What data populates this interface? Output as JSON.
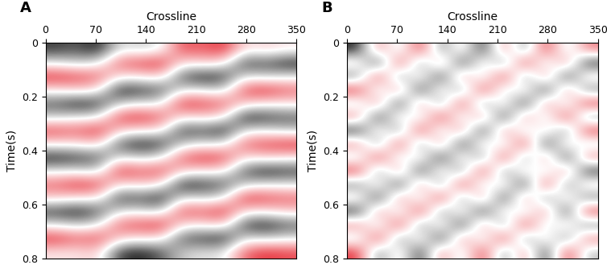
{
  "chart_data": [
    {
      "type": "heatmap",
      "title": "A",
      "xlabel": "Crossline",
      "ylabel": "Time(s)",
      "xlim": [
        0,
        350
      ],
      "ylim": [
        0.8,
        0
      ],
      "xticks": [
        0,
        70,
        140,
        210,
        280,
        350
      ],
      "yticks": [
        0,
        0.2,
        0.4,
        0.6,
        0.8
      ],
      "cells": [
        [
          0.7,
          0.6,
          0.8,
          0.1,
          0.2,
          0.1,
          -0.7,
          -0.6,
          -0.8,
          -0.1,
          -0.2,
          -0.1
        ],
        [
          0.1,
          0.2,
          0.1,
          -0.6,
          -0.7,
          -0.8,
          -0.1,
          -0.2,
          -0.1,
          0.7,
          0.6,
          0.8
        ],
        [
          -0.8,
          -0.7,
          -0.6,
          -0.1,
          -0.1,
          -0.2,
          0.6,
          0.8,
          0.7,
          0.1,
          0.2,
          0.1
        ],
        [
          -0.1,
          -0.2,
          -0.1,
          0.8,
          0.7,
          0.6,
          0.1,
          0.1,
          0.2,
          -0.7,
          -0.8,
          -0.6
        ],
        [
          0.6,
          0.8,
          0.7,
          0.2,
          0.1,
          0.1,
          -0.8,
          -0.7,
          -0.6,
          -0.2,
          -0.1,
          -0.1
        ],
        [
          0.2,
          0.1,
          0.1,
          -0.7,
          -0.8,
          -0.6,
          -0.1,
          -0.2,
          -0.1,
          0.8,
          0.7,
          0.6
        ],
        [
          -0.7,
          -0.6,
          -0.8,
          -0.2,
          -0.1,
          -0.1,
          0.7,
          0.6,
          0.8,
          0.1,
          0.1,
          0.2
        ],
        [
          -0.1,
          -0.1,
          -0.2,
          0.6,
          0.8,
          0.7,
          0.2,
          0.1,
          0.1,
          -0.6,
          -0.7,
          -0.8
        ],
        [
          0.8,
          0.7,
          0.6,
          0.1,
          0.2,
          0.1,
          -0.6,
          -0.8,
          -0.7,
          -0.1,
          -0.2,
          -0.1
        ],
        [
          0.1,
          0.1,
          0.2,
          -0.8,
          -0.6,
          -0.7,
          -0.2,
          -0.1,
          -0.1,
          0.6,
          0.8,
          0.7
        ],
        [
          -0.6,
          -0.8,
          -0.7,
          -0.1,
          -0.2,
          -0.1,
          0.8,
          0.7,
          0.6,
          0.2,
          0.1,
          0.1
        ],
        [
          -0.2,
          -0.1,
          -0.1,
          0.7,
          0.6,
          0.8,
          0.1,
          0.2,
          0.1,
          -0.8,
          -0.7,
          -0.6
        ],
        [
          0.7,
          0.8,
          0.6,
          0.1,
          0.1,
          0.2,
          -0.7,
          -0.6,
          -0.8,
          -0.1,
          -0.1,
          -0.2
        ],
        [
          0.1,
          0.2,
          0.1,
          -0.6,
          -0.7,
          -0.8,
          -0.1,
          -0.1,
          -0.2,
          0.7,
          0.8,
          0.6
        ],
        [
          -0.8,
          -0.6,
          -0.7,
          -0.2,
          -0.1,
          -0.1,
          0.6,
          0.7,
          0.8,
          0.1,
          0.2,
          0.1
        ],
        [
          -0.1,
          -0.1,
          -0.2,
          0.7,
          0.8,
          0.6,
          0.2,
          0.1,
          0.1,
          -0.6,
          -0.8,
          -0.7
        ]
      ]
    },
    {
      "type": "heatmap",
      "title": "B",
      "xlabel": "Crossline",
      "ylabel": "Time(s)",
      "xlim": [
        0,
        350
      ],
      "ylim": [
        0.8,
        0
      ],
      "xticks": [
        0,
        70,
        140,
        210,
        280,
        350
      ],
      "yticks": [
        0,
        0.2,
        0.4,
        0.6,
        0.8
      ],
      "cells": [
        [
          0.3,
          -0.2,
          0.1,
          -0.3,
          0.2,
          -0.1,
          0.3,
          -0.2,
          0.2,
          -0.3,
          0.1,
          -0.2
        ],
        [
          -0.1,
          0.3,
          -0.3,
          0.2,
          -0.2,
          0.3,
          -0.1,
          0.2,
          -0.3,
          0.1,
          -0.2,
          0.3
        ],
        [
          0.2,
          -0.3,
          0.2,
          -0.1,
          0.3,
          -0.2,
          0.1,
          -0.3,
          0.2,
          -0.2,
          0.3,
          -0.1
        ],
        [
          -0.3,
          0.1,
          -0.2,
          0.3,
          -0.1,
          0.2,
          -0.3,
          0.1,
          -0.1,
          0.3,
          -0.2,
          0.2
        ],
        [
          0.1,
          -0.2,
          0.3,
          -0.2,
          0.2,
          -0.3,
          0.2,
          -0.1,
          0.3,
          -0.2,
          0.1,
          -0.3
        ],
        [
          -0.2,
          0.3,
          -0.1,
          0.1,
          -0.3,
          0.1,
          -0.2,
          0.3,
          -0.2,
          0.1,
          -0.3,
          0.2
        ],
        [
          0.3,
          -0.1,
          0.2,
          -0.3,
          0.1,
          -0.2,
          0.3,
          -0.2,
          0.1,
          -0.1,
          0.2,
          -0.3
        ],
        [
          -0.2,
          0.2,
          -0.3,
          0.2,
          -0.2,
          0.3,
          -0.1,
          0.1,
          -0.3,
          0.3,
          -0.1,
          0.1
        ],
        [
          0.1,
          -0.3,
          0.1,
          -0.1,
          0.3,
          -0.1,
          0.2,
          -0.3,
          0.2,
          -0.2,
          0.3,
          -0.2
        ],
        [
          -0.3,
          0.2,
          -0.2,
          0.3,
          -0.1,
          0.2,
          -0.3,
          0.2,
          -0.1,
          0.1,
          -0.2,
          0.3
        ],
        [
          0.2,
          -0.1,
          0.3,
          -0.2,
          0.2,
          -0.3,
          0.1,
          -0.1,
          0.3,
          -0.3,
          0.2,
          -0.1
        ],
        [
          -0.1,
          0.3,
          -0.2,
          0.1,
          -0.3,
          0.2,
          -0.2,
          0.3,
          -0.2,
          0.2,
          -0.1,
          0.2
        ],
        [
          0.3,
          -0.2,
          0.1,
          -0.3,
          0.2,
          -0.1,
          0.3,
          -0.1,
          0.1,
          -0.2,
          0.3,
          -0.3
        ],
        [
          -0.2,
          0.1,
          -0.3,
          0.2,
          -0.1,
          0.3,
          -0.2,
          0.2,
          -0.3,
          0.1,
          -0.1,
          0.2
        ],
        [
          0.1,
          -0.3,
          0.2,
          -0.1,
          0.3,
          -0.2,
          0.1,
          -0.3,
          0.2,
          -0.1,
          0.2,
          -0.2
        ],
        [
          -0.3,
          0.2,
          -0.1,
          0.3,
          -0.2,
          0.1,
          -0.3,
          0.2,
          -0.2,
          0.3,
          -0.3,
          0.1
        ]
      ]
    }
  ]
}
